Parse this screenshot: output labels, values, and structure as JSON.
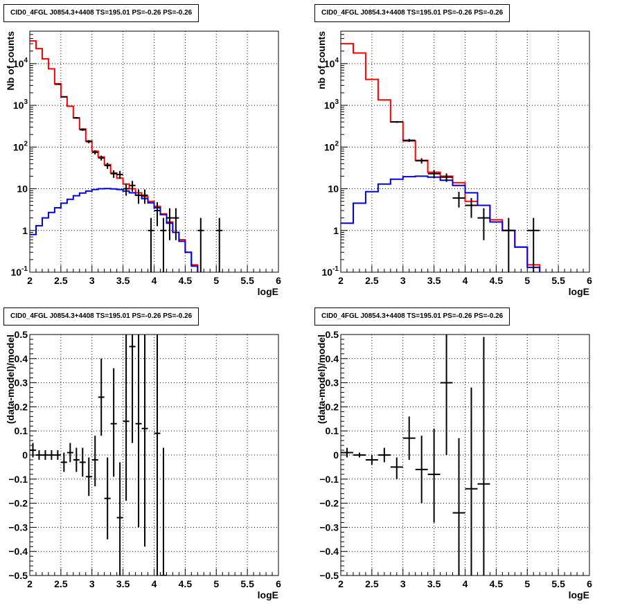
{
  "chart_data": [
    {
      "type": "histogram",
      "title": "CID0_4FGL J0854.3+4408 TS=195.01 PS=-0.26 PS=-0.26",
      "xlabel": "logE",
      "ylabel": "Nb of counts",
      "xlim": [
        2,
        6
      ],
      "ylim": [
        0.1,
        60000
      ],
      "log_y": true,
      "grid": true,
      "x_ticks": [
        "2",
        "2.5",
        "3",
        "3.5",
        "4",
        "4.5",
        "5",
        "5.5",
        "6"
      ],
      "y_ticks": [
        "10^-1",
        "1",
        "10",
        "10^2",
        "10^3",
        "10^4"
      ],
      "bin_edges": [
        2.0,
        2.1,
        2.2,
        2.3,
        2.4,
        2.5,
        2.6,
        2.7,
        2.8,
        2.9,
        3.0,
        3.1,
        3.2,
        3.3,
        3.4,
        3.5,
        3.6,
        3.7,
        3.8,
        3.9,
        4.0,
        4.1,
        4.2,
        4.3,
        4.4,
        4.5,
        4.6,
        4.7,
        4.8,
        4.9,
        5.0,
        5.1,
        5.2,
        5.3,
        5.4,
        5.5,
        5.6,
        5.7,
        5.8,
        5.9,
        6.0
      ],
      "series": [
        {
          "name": "",
          "color": "#ff0000",
          "style": "step",
          "values": [
            35000,
            23000,
            13000,
            7500,
            3300,
            1600,
            950,
            500,
            270,
            140,
            80,
            58,
            38,
            24,
            18,
            13,
            10,
            8,
            6.5,
            5,
            3.8,
            2.5,
            1.6,
            0.9,
            0.6,
            0.3,
            0.15,
            0.08,
            0.08,
            0.08,
            0.08,
            0.08,
            0.08,
            0.08,
            0.08,
            0.08,
            0.08,
            0.08,
            0.08,
            0.08
          ]
        },
        {
          "name": "",
          "color": "#0000dd",
          "style": "step",
          "values": [
            0.8,
            1.3,
            2.0,
            2.7,
            3.5,
            4.5,
            5.6,
            6.8,
            7.9,
            8.8,
            9.6,
            10.0,
            10.1,
            9.9,
            9.6,
            8.8,
            8.0,
            7.0,
            5.8,
            4.6,
            3.5,
            2.4,
            1.5,
            0.9,
            0.55,
            0.3,
            0.14,
            0.08,
            0.08,
            0.08,
            0.08,
            0.08,
            0.08,
            0.08,
            0.08,
            0.08,
            0.08,
            0.08,
            0.08,
            0.08
          ]
        },
        {
          "name": "",
          "color": "#000000",
          "style": "points",
          "points": [
            {
              "x": 2.45,
              "y": 3200
            },
            {
              "x": 2.55,
              "y": 1600
            },
            {
              "x": 2.75,
              "y": 500
            },
            {
              "x": 2.85,
              "y": 260
            },
            {
              "x": 2.95,
              "y": 135
            },
            {
              "x": 3.05,
              "y": 75
            },
            {
              "x": 3.15,
              "y": 55
            },
            {
              "x": 3.25,
              "y": 36
            },
            {
              "x": 3.35,
              "y": 23
            },
            {
              "x": 3.45,
              "y": 22
            },
            {
              "x": 3.55,
              "y": 10
            },
            {
              "x": 3.65,
              "y": 12
            },
            {
              "x": 3.75,
              "y": 7
            },
            {
              "x": 3.85,
              "y": 7
            },
            {
              "x": 3.95,
              "y": 1
            },
            {
              "x": 4.05,
              "y": 3
            },
            {
              "x": 4.15,
              "y": 1
            },
            {
              "x": 4.25,
              "y": 2
            },
            {
              "x": 4.35,
              "y": 2
            },
            {
              "x": 4.75,
              "y": 1
            },
            {
              "x": 5.05,
              "y": 1
            }
          ]
        }
      ]
    },
    {
      "type": "histogram",
      "title": "CID0_4FGL J0854.3+4408 TS=195.01 PS=-0.26 PS=-0.26",
      "xlabel": "logE",
      "ylabel": "nb of counts",
      "xlim": [
        2,
        6
      ],
      "ylim": [
        0.1,
        60000
      ],
      "log_y": true,
      "grid": true,
      "x_ticks": [
        "2",
        "2.5",
        "3",
        "3.5",
        "4",
        "4.5",
        "5",
        "5.5",
        "6"
      ],
      "y_ticks": [
        "10^-1",
        "1",
        "10",
        "10^2",
        "10^3",
        "10^4"
      ],
      "bin_edges": [
        2.0,
        2.2,
        2.4,
        2.6,
        2.8,
        3.0,
        3.2,
        3.4,
        3.6,
        3.8,
        4.0,
        4.2,
        4.4,
        4.6,
        4.8,
        5.0,
        5.2,
        5.4,
        5.6,
        5.8,
        6.0
      ],
      "series": [
        {
          "name": "",
          "color": "#ff0000",
          "style": "step",
          "values": [
            30000,
            18000,
            4200,
            1350,
            400,
            140,
            48,
            25,
            20,
            14,
            5,
            4,
            1.8,
            1,
            0.4,
            0.15,
            0.08,
            0.08,
            0.08,
            0.08
          ]
        },
        {
          "name": "",
          "color": "#0000dd",
          "style": "step",
          "values": [
            1.5,
            4.5,
            8.5,
            13,
            17,
            19.5,
            20,
            19,
            16,
            12,
            8,
            4,
            1.6,
            1,
            0.4,
            0.13,
            0.08,
            0.08,
            0.08,
            0.08
          ]
        },
        {
          "name": "",
          "color": "#000000",
          "style": "points",
          "points": [
            {
              "x": 2.9,
              "y": 400
            },
            {
              "x": 3.1,
              "y": 145
            },
            {
              "x": 3.3,
              "y": 47
            },
            {
              "x": 3.5,
              "y": 23
            },
            {
              "x": 3.7,
              "y": 19
            },
            {
              "x": 3.9,
              "y": 6
            },
            {
              "x": 4.1,
              "y": 4
            },
            {
              "x": 4.3,
              "y": 2
            },
            {
              "x": 4.7,
              "y": 1
            },
            {
              "x": 5.1,
              "y": 1
            }
          ]
        }
      ]
    },
    {
      "type": "scatter",
      "title": "CID0_4FGL J0854.3+4408 TS=195.01 PS=-0.26 PS=-0.26",
      "xlabel": "logE",
      "ylabel": "(data-model)/model",
      "xlim": [
        2,
        6
      ],
      "ylim": [
        -0.5,
        0.5
      ],
      "grid": true,
      "x_ticks": [
        "2",
        "2.5",
        "3",
        "3.5",
        "4",
        "4.5",
        "5",
        "5.5",
        "6"
      ],
      "y_ticks": [
        "-0.5",
        "-0.4",
        "-0.3",
        "-0.2",
        "-0.1",
        "0",
        "0.1",
        "0.2",
        "0.3",
        "0.4",
        "0.5"
      ],
      "series": [
        {
          "name": "",
          "color": "#000000",
          "style": "points",
          "xerr": 0.05,
          "points": [
            {
              "x": 2.05,
              "y": 0.02,
              "lo": -0.01,
              "hi": 0.05
            },
            {
              "x": 2.15,
              "y": 0.0,
              "lo": -0.02,
              "hi": 0.02
            },
            {
              "x": 2.25,
              "y": 0.0,
              "lo": -0.02,
              "hi": 0.02
            },
            {
              "x": 2.35,
              "y": 0.0,
              "lo": -0.02,
              "hi": 0.02
            },
            {
              "x": 2.45,
              "y": 0.0,
              "lo": -0.02,
              "hi": 0.02
            },
            {
              "x": 2.55,
              "y": -0.03,
              "lo": -0.07,
              "hi": 0.01
            },
            {
              "x": 2.65,
              "y": 0.01,
              "lo": -0.03,
              "hi": 0.05
            },
            {
              "x": 2.75,
              "y": -0.02,
              "lo": -0.07,
              "hi": 0.03
            },
            {
              "x": 2.85,
              "y": -0.03,
              "lo": -0.09,
              "hi": 0.03
            },
            {
              "x": 2.95,
              "y": -0.09,
              "lo": -0.17,
              "hi": -0.01
            },
            {
              "x": 3.05,
              "y": -0.02,
              "lo": -0.13,
              "hi": 0.08
            },
            {
              "x": 3.15,
              "y": 0.24,
              "lo": 0.08,
              "hi": 0.4
            },
            {
              "x": 3.25,
              "y": -0.18,
              "lo": -0.35,
              "hi": -0.01
            },
            {
              "x": 3.35,
              "y": 0.13,
              "lo": -0.09,
              "hi": 0.36
            },
            {
              "x": 3.45,
              "y": -0.26,
              "lo": -0.5,
              "hi": -0.03
            },
            {
              "x": 3.55,
              "y": 0.14,
              "lo": -0.19,
              "hi": 0.5
            },
            {
              "x": 3.65,
              "y": 0.45,
              "lo": 0.05,
              "hi": 0.5
            },
            {
              "x": 3.75,
              "y": 0.13,
              "lo": -0.3,
              "hi": 0.5
            },
            {
              "x": 3.85,
              "y": 0.11,
              "lo": -0.38,
              "hi": 0.5
            },
            {
              "x": 4.05,
              "y": 0.09,
              "lo": -0.5,
              "hi": 0.5
            },
            {
              "x": 4.15,
              "y": -0.5,
              "lo": -0.5,
              "hi": 0.03
            }
          ]
        }
      ]
    },
    {
      "type": "scatter",
      "title": "CID0_4FGL J0854.3+4408 TS=195.01 PS=-0.26 PS=-0.26",
      "xlabel": "logE",
      "ylabel": "(data-model)/model",
      "xlim": [
        2,
        6
      ],
      "ylim": [
        -0.5,
        0.5
      ],
      "grid": true,
      "x_ticks": [
        "2",
        "2.5",
        "3",
        "3.5",
        "4",
        "4.5",
        "5",
        "5.5",
        "6"
      ],
      "y_ticks": [
        "-0.5",
        "-0.4",
        "-0.3",
        "-0.2",
        "-0.1",
        "0",
        "0.1",
        "0.2",
        "0.3",
        "0.4",
        "0.5"
      ],
      "series": [
        {
          "name": "",
          "color": "#000000",
          "style": "points",
          "xerr": 0.1,
          "points": [
            {
              "x": 2.1,
              "y": 0.01,
              "lo": -0.01,
              "hi": 0.03
            },
            {
              "x": 2.3,
              "y": 0.0,
              "lo": -0.01,
              "hi": 0.01
            },
            {
              "x": 2.5,
              "y": -0.02,
              "lo": -0.04,
              "hi": 0.0
            },
            {
              "x": 2.7,
              "y": 0.0,
              "lo": -0.03,
              "hi": 0.03
            },
            {
              "x": 2.9,
              "y": -0.05,
              "lo": -0.1,
              "hi": -0.01
            },
            {
              "x": 3.1,
              "y": 0.07,
              "lo": -0.02,
              "hi": 0.16
            },
            {
              "x": 3.3,
              "y": -0.06,
              "lo": -0.2,
              "hi": 0.08
            },
            {
              "x": 3.5,
              "y": -0.08,
              "lo": -0.28,
              "hi": 0.11
            },
            {
              "x": 3.7,
              "y": 0.3,
              "lo": 0.0,
              "hi": 0.5
            },
            {
              "x": 3.9,
              "y": -0.24,
              "lo": -0.5,
              "hi": 0.07
            },
            {
              "x": 4.1,
              "y": -0.14,
              "lo": -0.5,
              "hi": 0.28
            },
            {
              "x": 4.3,
              "y": -0.12,
              "lo": -0.5,
              "hi": 0.49
            }
          ]
        }
      ]
    }
  ]
}
